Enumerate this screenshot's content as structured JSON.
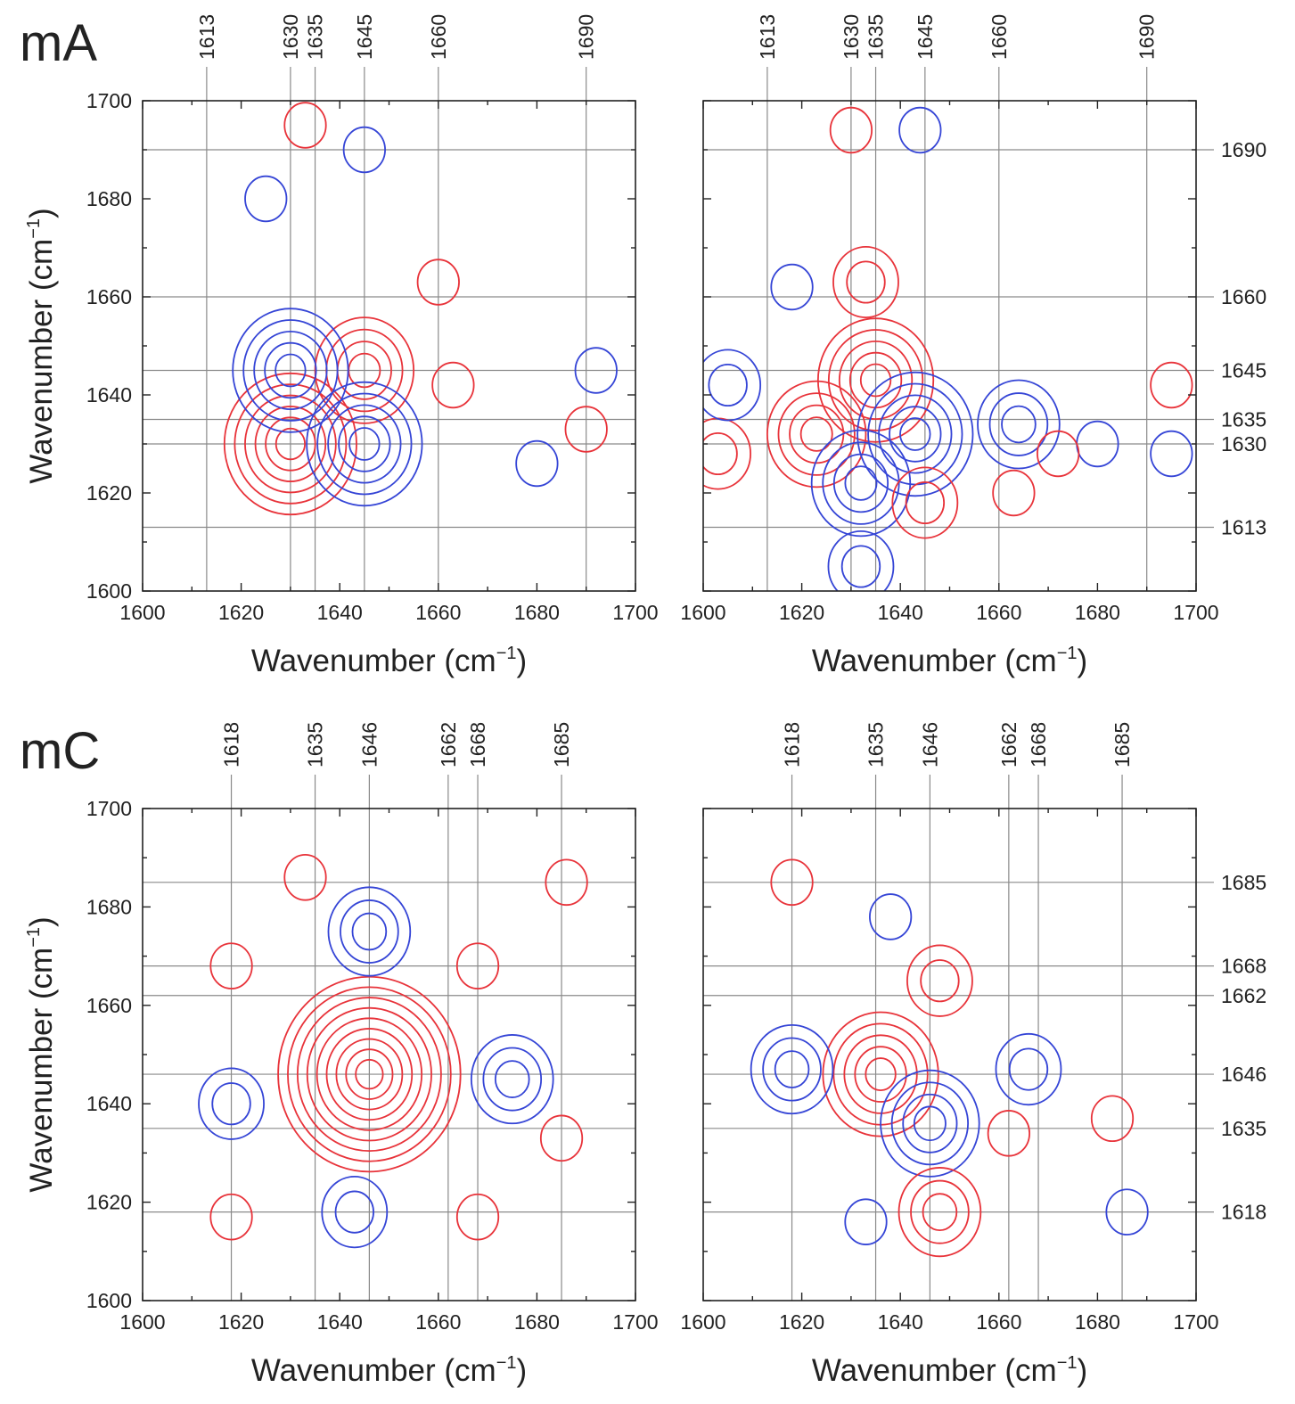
{
  "colors": {
    "positive": "#e8333a",
    "negative": "#3545d6",
    "guide": "#8a8a8a",
    "axis": "#222222"
  },
  "chart_data": [
    {
      "type": "contour",
      "subplot": "synchronous",
      "panel_label": "mA",
      "xlabel": "Wavenumber (cm",
      "xlabel_sup": "−1",
      "xlabel_close": ")",
      "ylabel": "Wavenumber (cm",
      "ylabel_sup": "−1",
      "ylabel_close": ")",
      "xlim": [
        1600,
        1700
      ],
      "ylim": [
        1600,
        1700
      ],
      "xticks": [
        "1600",
        "1620",
        "1640",
        "1660",
        "1680",
        "1700"
      ],
      "yticks": [
        "1600",
        "1620",
        "1640",
        "1660",
        "1680",
        "1700"
      ],
      "marked_positions": [
        "1613",
        "1630",
        "1635",
        "1645",
        "1660",
        "1690"
      ],
      "show_right_marks": false,
      "peaks": [
        {
          "x": 1630,
          "y": 1630,
          "sign": "+",
          "levels": 6
        },
        {
          "x": 1645,
          "y": 1645,
          "sign": "+",
          "levels": 4
        },
        {
          "x": 1630,
          "y": 1645,
          "sign": "-",
          "levels": 5
        },
        {
          "x": 1645,
          "y": 1630,
          "sign": "-",
          "levels": 5
        },
        {
          "x": 1660,
          "y": 1663,
          "sign": "+",
          "levels": 1
        },
        {
          "x": 1633,
          "y": 1695,
          "sign": "+",
          "levels": 1
        },
        {
          "x": 1645,
          "y": 1690,
          "sign": "-",
          "levels": 1
        },
        {
          "x": 1625,
          "y": 1680,
          "sign": "-",
          "levels": 1
        },
        {
          "x": 1663,
          "y": 1642,
          "sign": "+",
          "levels": 1
        },
        {
          "x": 1690,
          "y": 1633,
          "sign": "+",
          "levels": 1
        },
        {
          "x": 1692,
          "y": 1645,
          "sign": "-",
          "levels": 1
        },
        {
          "x": 1680,
          "y": 1626,
          "sign": "-",
          "levels": 1
        }
      ]
    },
    {
      "type": "contour",
      "subplot": "asynchronous",
      "panel_label": "",
      "xlabel": "Wavenumber (cm",
      "xlabel_sup": "−1",
      "xlabel_close": ")",
      "xlim": [
        1600,
        1700
      ],
      "ylim": [
        1600,
        1700
      ],
      "xticks": [
        "1600",
        "1620",
        "1640",
        "1660",
        "1680",
        "1700"
      ],
      "marked_positions": [
        "1613",
        "1630",
        "1635",
        "1645",
        "1660",
        "1690"
      ],
      "show_right_marks": true,
      "peaks": [
        {
          "x": 1635,
          "y": 1643,
          "sign": "+",
          "levels": 5
        },
        {
          "x": 1623,
          "y": 1632,
          "sign": "+",
          "levels": 4
        },
        {
          "x": 1643,
          "y": 1632,
          "sign": "-",
          "levels": 5
        },
        {
          "x": 1632,
          "y": 1622,
          "sign": "-",
          "levels": 4
        },
        {
          "x": 1645,
          "y": 1618,
          "sign": "+",
          "levels": 2
        },
        {
          "x": 1603,
          "y": 1628,
          "sign": "+",
          "levels": 2
        },
        {
          "x": 1605,
          "y": 1642,
          "sign": "-",
          "levels": 2
        },
        {
          "x": 1632,
          "y": 1605,
          "sign": "-",
          "levels": 2
        },
        {
          "x": 1633,
          "y": 1663,
          "sign": "+",
          "levels": 2
        },
        {
          "x": 1618,
          "y": 1662,
          "sign": "-",
          "levels": 1
        },
        {
          "x": 1630,
          "y": 1694,
          "sign": "+",
          "levels": 1
        },
        {
          "x": 1644,
          "y": 1694,
          "sign": "-",
          "levels": 1
        },
        {
          "x": 1664,
          "y": 1634,
          "sign": "-",
          "levels": 3
        },
        {
          "x": 1663,
          "y": 1620,
          "sign": "+",
          "levels": 1
        },
        {
          "x": 1695,
          "y": 1642,
          "sign": "+",
          "levels": 1
        },
        {
          "x": 1695,
          "y": 1628,
          "sign": "-",
          "levels": 1
        },
        {
          "x": 1680,
          "y": 1630,
          "sign": "-",
          "levels": 1
        },
        {
          "x": 1672,
          "y": 1628,
          "sign": "+",
          "levels": 1
        }
      ]
    },
    {
      "type": "contour",
      "subplot": "synchronous",
      "panel_label": "mC",
      "xlabel": "Wavenumber (cm",
      "xlabel_sup": "−1",
      "xlabel_close": ")",
      "ylabel": "Wavenumber (cm",
      "ylabel_sup": "−1",
      "ylabel_close": ")",
      "xlim": [
        1600,
        1700
      ],
      "ylim": [
        1600,
        1700
      ],
      "xticks": [
        "1600",
        "1620",
        "1640",
        "1660",
        "1680",
        "1700"
      ],
      "yticks": [
        "1600",
        "1620",
        "1640",
        "1660",
        "1680",
        "1700"
      ],
      "marked_positions": [
        "1618",
        "1635",
        "1646",
        "1662",
        "1668",
        "1685"
      ],
      "show_right_marks": false,
      "peaks": [
        {
          "x": 1646,
          "y": 1646,
          "sign": "+",
          "levels": 9
        },
        {
          "x": 1646,
          "y": 1675,
          "sign": "-",
          "levels": 3
        },
        {
          "x": 1675,
          "y": 1645,
          "sign": "-",
          "levels": 3
        },
        {
          "x": 1618,
          "y": 1640,
          "sign": "-",
          "levels": 2
        },
        {
          "x": 1643,
          "y": 1618,
          "sign": "-",
          "levels": 2
        },
        {
          "x": 1618,
          "y": 1668,
          "sign": "+",
          "levels": 1
        },
        {
          "x": 1618,
          "y": 1617,
          "sign": "+",
          "levels": 1
        },
        {
          "x": 1668,
          "y": 1617,
          "sign": "+",
          "levels": 1
        },
        {
          "x": 1686,
          "y": 1685,
          "sign": "+",
          "levels": 1
        },
        {
          "x": 1633,
          "y": 1686,
          "sign": "+",
          "levels": 1
        },
        {
          "x": 1668,
          "y": 1668,
          "sign": "+",
          "levels": 1
        },
        {
          "x": 1685,
          "y": 1633,
          "sign": "+",
          "levels": 1
        }
      ]
    },
    {
      "type": "contour",
      "subplot": "asynchronous",
      "panel_label": "",
      "xlabel": "Wavenumber (cm",
      "xlabel_sup": "−1",
      "xlabel_close": ")",
      "xlim": [
        1600,
        1700
      ],
      "ylim": [
        1600,
        1700
      ],
      "xticks": [
        "1600",
        "1620",
        "1640",
        "1660",
        "1680",
        "1700"
      ],
      "marked_positions": [
        "1618",
        "1635",
        "1646",
        "1662",
        "1668",
        "1685"
      ],
      "show_right_marks": true,
      "peaks": [
        {
          "x": 1636,
          "y": 1646,
          "sign": "+",
          "levels": 5
        },
        {
          "x": 1648,
          "y": 1665,
          "sign": "+",
          "levels": 2
        },
        {
          "x": 1646,
          "y": 1636,
          "sign": "-",
          "levels": 4
        },
        {
          "x": 1638,
          "y": 1678,
          "sign": "-",
          "levels": 1
        },
        {
          "x": 1618,
          "y": 1647,
          "sign": "-",
          "levels": 3
        },
        {
          "x": 1666,
          "y": 1647,
          "sign": "-",
          "levels": 2
        },
        {
          "x": 1648,
          "y": 1618,
          "sign": "+",
          "levels": 3
        },
        {
          "x": 1618,
          "y": 1685,
          "sign": "+",
          "levels": 1
        },
        {
          "x": 1683,
          "y": 1637,
          "sign": "+",
          "levels": 1
        },
        {
          "x": 1686,
          "y": 1618,
          "sign": "-",
          "levels": 1
        },
        {
          "x": 1662,
          "y": 1634,
          "sign": "+",
          "levels": 1
        },
        {
          "x": 1633,
          "y": 1616,
          "sign": "-",
          "levels": 1
        }
      ]
    }
  ]
}
